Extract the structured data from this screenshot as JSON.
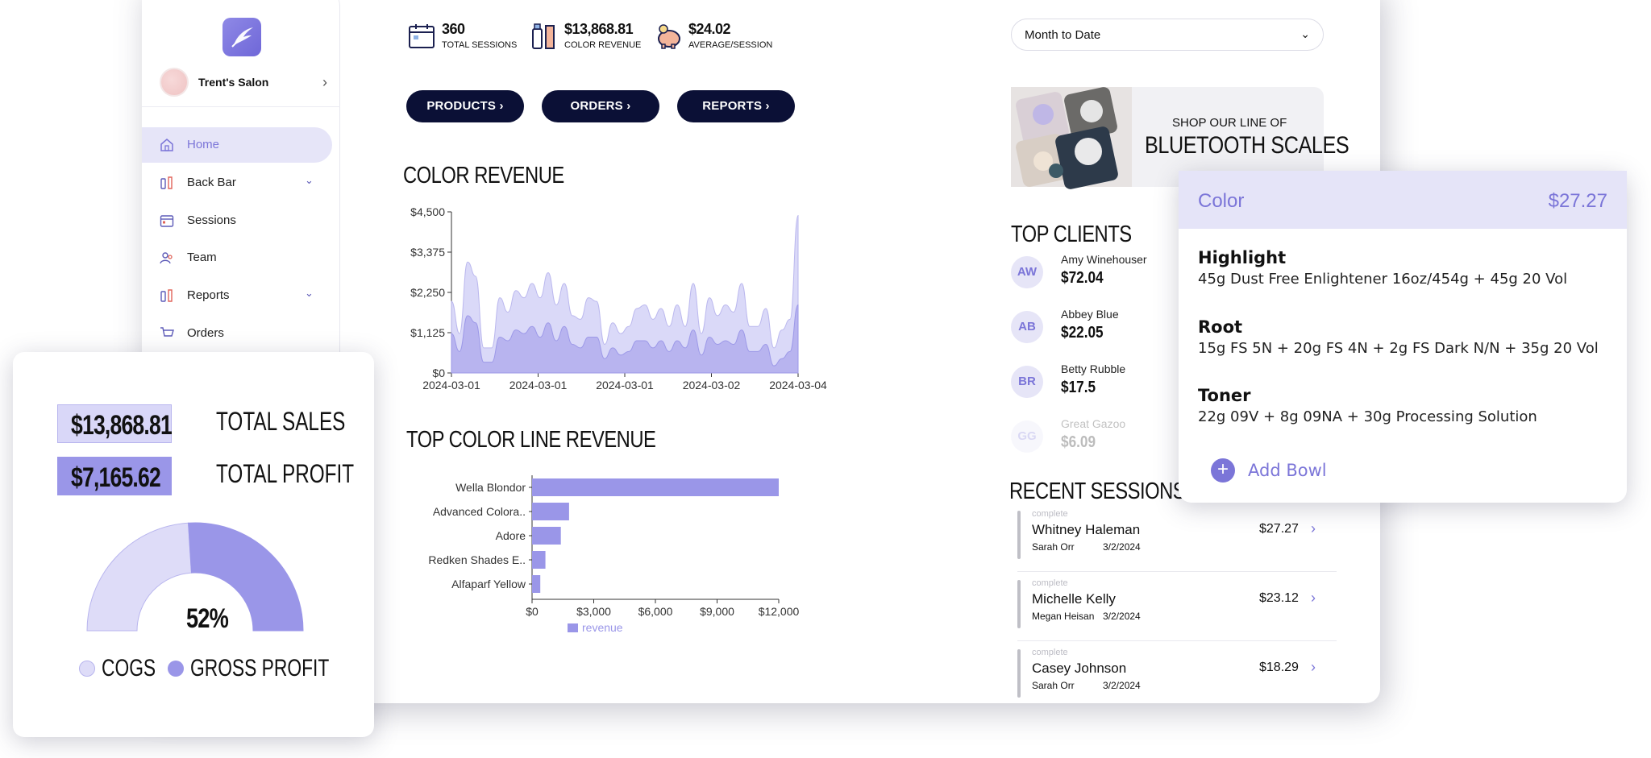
{
  "sidebar": {
    "salon_name": "Trent's Salon",
    "items": [
      {
        "label": "Home",
        "icon": "home-icon",
        "active": true
      },
      {
        "label": "Back Bar",
        "icon": "bottles-icon",
        "expandable": true
      },
      {
        "label": "Sessions",
        "icon": "calendar-icon"
      },
      {
        "label": "Team",
        "icon": "team-icon"
      },
      {
        "label": "Reports",
        "icon": "bottles-icon",
        "expandable": true
      },
      {
        "label": "Orders",
        "icon": "cart-icon"
      }
    ]
  },
  "stats": [
    {
      "value": "360",
      "label": "TOTAL SESSIONS",
      "icon": "calendar-icon"
    },
    {
      "value": "$13,868.81",
      "label": "COLOR REVENUE",
      "icon": "bottles-icon"
    },
    {
      "value": "$24.02",
      "label": "AVERAGE/SESSION",
      "icon": "piggy-bank-icon"
    }
  ],
  "buttons": {
    "products": "PRODUCTS",
    "orders": "ORDERS",
    "reports": "REPORTS"
  },
  "date_filter": {
    "value": "Month to Date"
  },
  "banner": {
    "line1": "SHOP OUR LINE OF",
    "line2": "BLUETOOTH SCALES"
  },
  "color_revenue": {
    "title": "COLOR REVENUE"
  },
  "color_line": {
    "title": "TOP COLOR LINE REVENUE"
  },
  "top_clients": {
    "title": "TOP CLIENTS",
    "clients": [
      {
        "initials": "AW",
        "name": "Amy Winehouser",
        "amount": "$72.04"
      },
      {
        "initials": "AB",
        "name": "Abbey Blue",
        "amount": "$22.05"
      },
      {
        "initials": "BR",
        "name": "Betty Rubble",
        "amount": "$17.5"
      },
      {
        "initials": "GG",
        "name": "Great Gazoo",
        "amount": "$6.09"
      }
    ]
  },
  "recent_sessions": {
    "title": "RECENT SESSIONS",
    "sessions": [
      {
        "status": "complete",
        "client": "Whitney Haleman",
        "stylist": "Sarah Orr",
        "date": "3/2/2024",
        "amount": "$27.27"
      },
      {
        "status": "complete",
        "client": "Michelle Kelly",
        "stylist": "Megan Heisan",
        "date": "3/2/2024",
        "amount": "$23.12"
      },
      {
        "status": "complete",
        "client": "Casey Johnson",
        "stylist": "Sarah Orr",
        "date": "3/2/2024",
        "amount": "$18.29"
      }
    ]
  },
  "sales_card": {
    "total_sales_value": "$13,868.81",
    "total_sales_label": "TOTAL SALES",
    "total_profit_value": "$7,165.62",
    "total_profit_label": "TOTAL PROFIT",
    "percent": "52%",
    "legend": {
      "cogs": "COGS",
      "gross_profit": "GROSS PROFIT"
    }
  },
  "bowl_card": {
    "title": "Color",
    "price": "$27.27",
    "bowls": [
      {
        "name": "Highlight",
        "formula": "45g Dust Free Enlightener 16oz/454g + 45g 20 Vol"
      },
      {
        "name": "Root",
        "formula": "15g FS 5N + 20g FS 4N + 2g FS Dark N/N + 35g 20 Vol"
      },
      {
        "name": "Toner",
        "formula": "22g 09V + 8g 09NA + 30g Processing Solution"
      }
    ],
    "add_label": "Add Bowl"
  },
  "colors": {
    "accent": "#7b75d8",
    "light_fill": "#d9d7f8",
    "dark_fill": "#9a96e8",
    "navy": "#0b1036"
  },
  "chart_data": [
    {
      "type": "area",
      "title": "COLOR REVENUE",
      "x_tick_labels": [
        "2024-03-01",
        "2024-03-01",
        "2024-03-01",
        "2024-03-02",
        "2024-03-04"
      ],
      "y_tick_labels": [
        "$0",
        "$1,125",
        "$2,250",
        "$3,375",
        "$4,500"
      ],
      "ylim": [
        0,
        4500
      ],
      "series": [
        {
          "values": [
            2000,
            1100,
            3100,
            2700,
            700,
            700,
            2100,
            1700,
            2300,
            2100,
            2500,
            2100,
            2800,
            1900,
            2500,
            1600,
            1500,
            2100,
            2000,
            800,
            1400,
            1100,
            1300,
            1800,
            1900,
            1500,
            1800,
            1300,
            1900,
            1300,
            2500,
            1100,
            2100,
            1600,
            1900,
            1700,
            2500,
            1300,
            1300,
            1800,
            700,
            1200,
            1500,
            4400
          ]
        },
        {
          "values": [
            1100,
            600,
            1600,
            1400,
            300,
            300,
            1000,
            900,
            1200,
            1100,
            1300,
            1000,
            1400,
            900,
            1300,
            800,
            700,
            1000,
            1000,
            400,
            700,
            500,
            600,
            900,
            900,
            700,
            900,
            600,
            900,
            700,
            1200,
            500,
            1000,
            800,
            900,
            800,
            1200,
            600,
            600,
            800,
            200,
            400,
            600,
            1900
          ]
        }
      ]
    },
    {
      "type": "bar",
      "orientation": "horizontal",
      "title": "TOP COLOR LINE REVENUE",
      "categories": [
        "Wella Blondor",
        "Advanced Colora..",
        "Adore",
        "Redken Shades E..",
        "Alfaparf Yellow"
      ],
      "series": [
        {
          "name": "revenue",
          "values": [
            12000,
            1800,
            1400,
            650,
            400
          ]
        }
      ],
      "x_tick_labels": [
        "$0",
        "$3,000",
        "$6,000",
        "$9,000",
        "$12,000"
      ],
      "xlim": [
        0,
        12000
      ],
      "legend": "bottom"
    },
    {
      "type": "pie",
      "variant": "half-donut",
      "categories": [
        "COGS",
        "GROSS PROFIT"
      ],
      "values": [
        48,
        52
      ],
      "center_label": "52%"
    }
  ]
}
